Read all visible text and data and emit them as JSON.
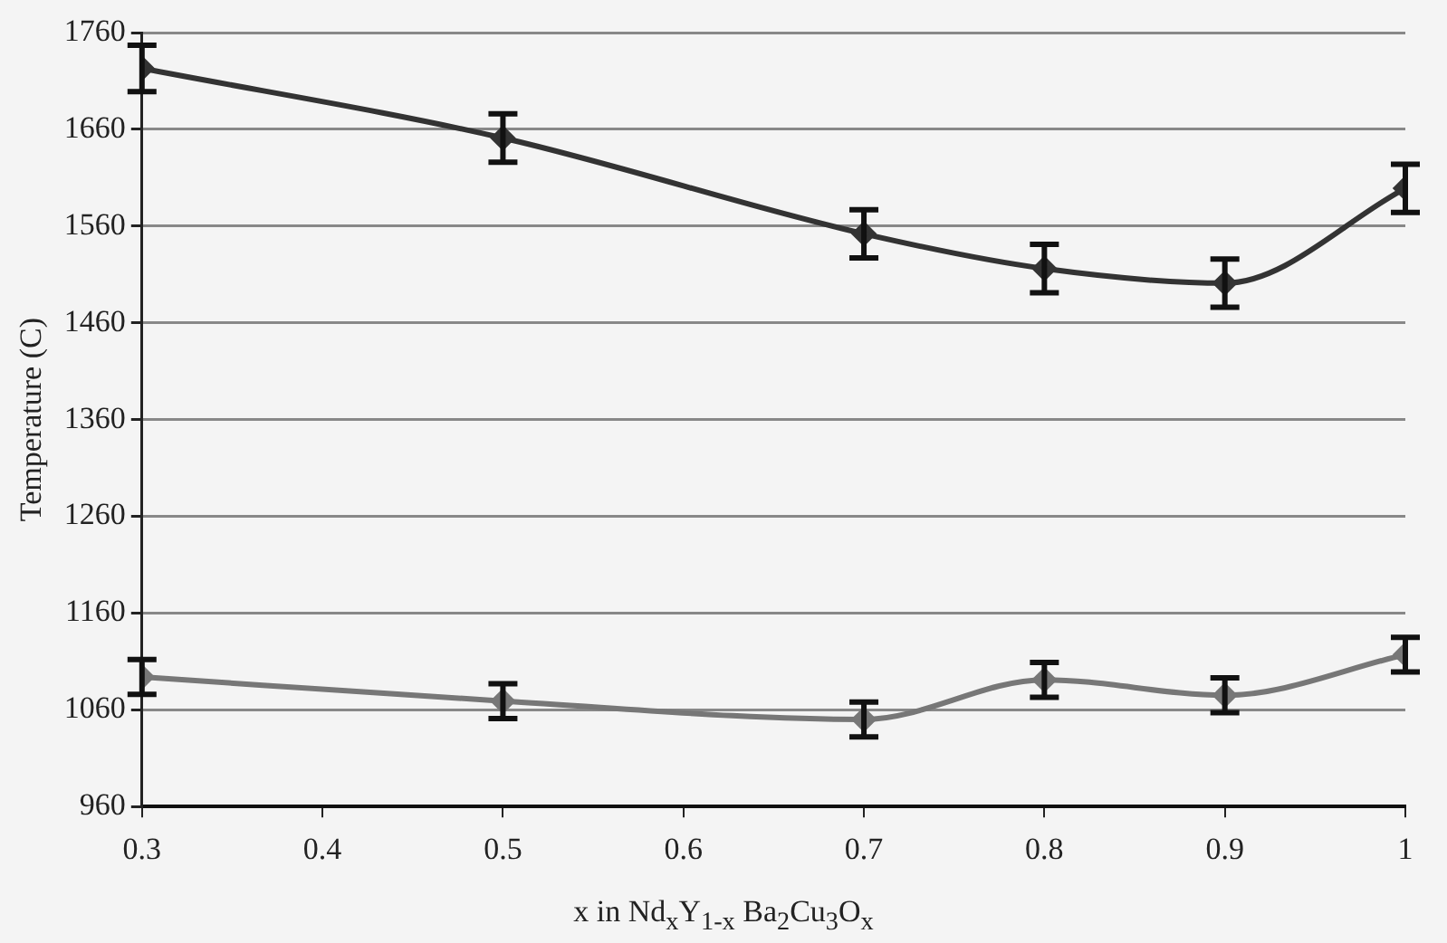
{
  "chart_data": {
    "type": "line",
    "xlabel": "x in Nd$_{x}$Y$_{1-x}$ Ba$_{2}$Cu$_{3}$O$_{x}$",
    "ylabel": "Temperature (C)",
    "x": [
      0.3,
      0.5,
      0.7,
      0.8,
      0.9,
      1
    ],
    "series": [
      {
        "color": "#333333",
        "values": [
          1723,
          1651,
          1552,
          1516,
          1501,
          1599
        ],
        "errors": [
          24,
          25,
          25,
          25,
          25,
          25
        ]
      },
      {
        "color": "#777777",
        "values": [
          1094,
          1069,
          1050,
          1091,
          1075,
          1117
        ],
        "errors": [
          18,
          18,
          18,
          18,
          18,
          18
        ]
      }
    ],
    "xlim": [
      0.3,
      1
    ],
    "xticks": [
      0.3,
      0.4,
      0.5,
      0.6,
      0.7,
      0.8,
      0.9,
      1
    ],
    "ylim": [
      960,
      1760
    ],
    "yticks": [
      960,
      1060,
      1160,
      1260,
      1360,
      1460,
      1560,
      1660,
      1760
    ],
    "grid": "y",
    "legend": false,
    "marker": "diamond",
    "line_style": "solid"
  }
}
